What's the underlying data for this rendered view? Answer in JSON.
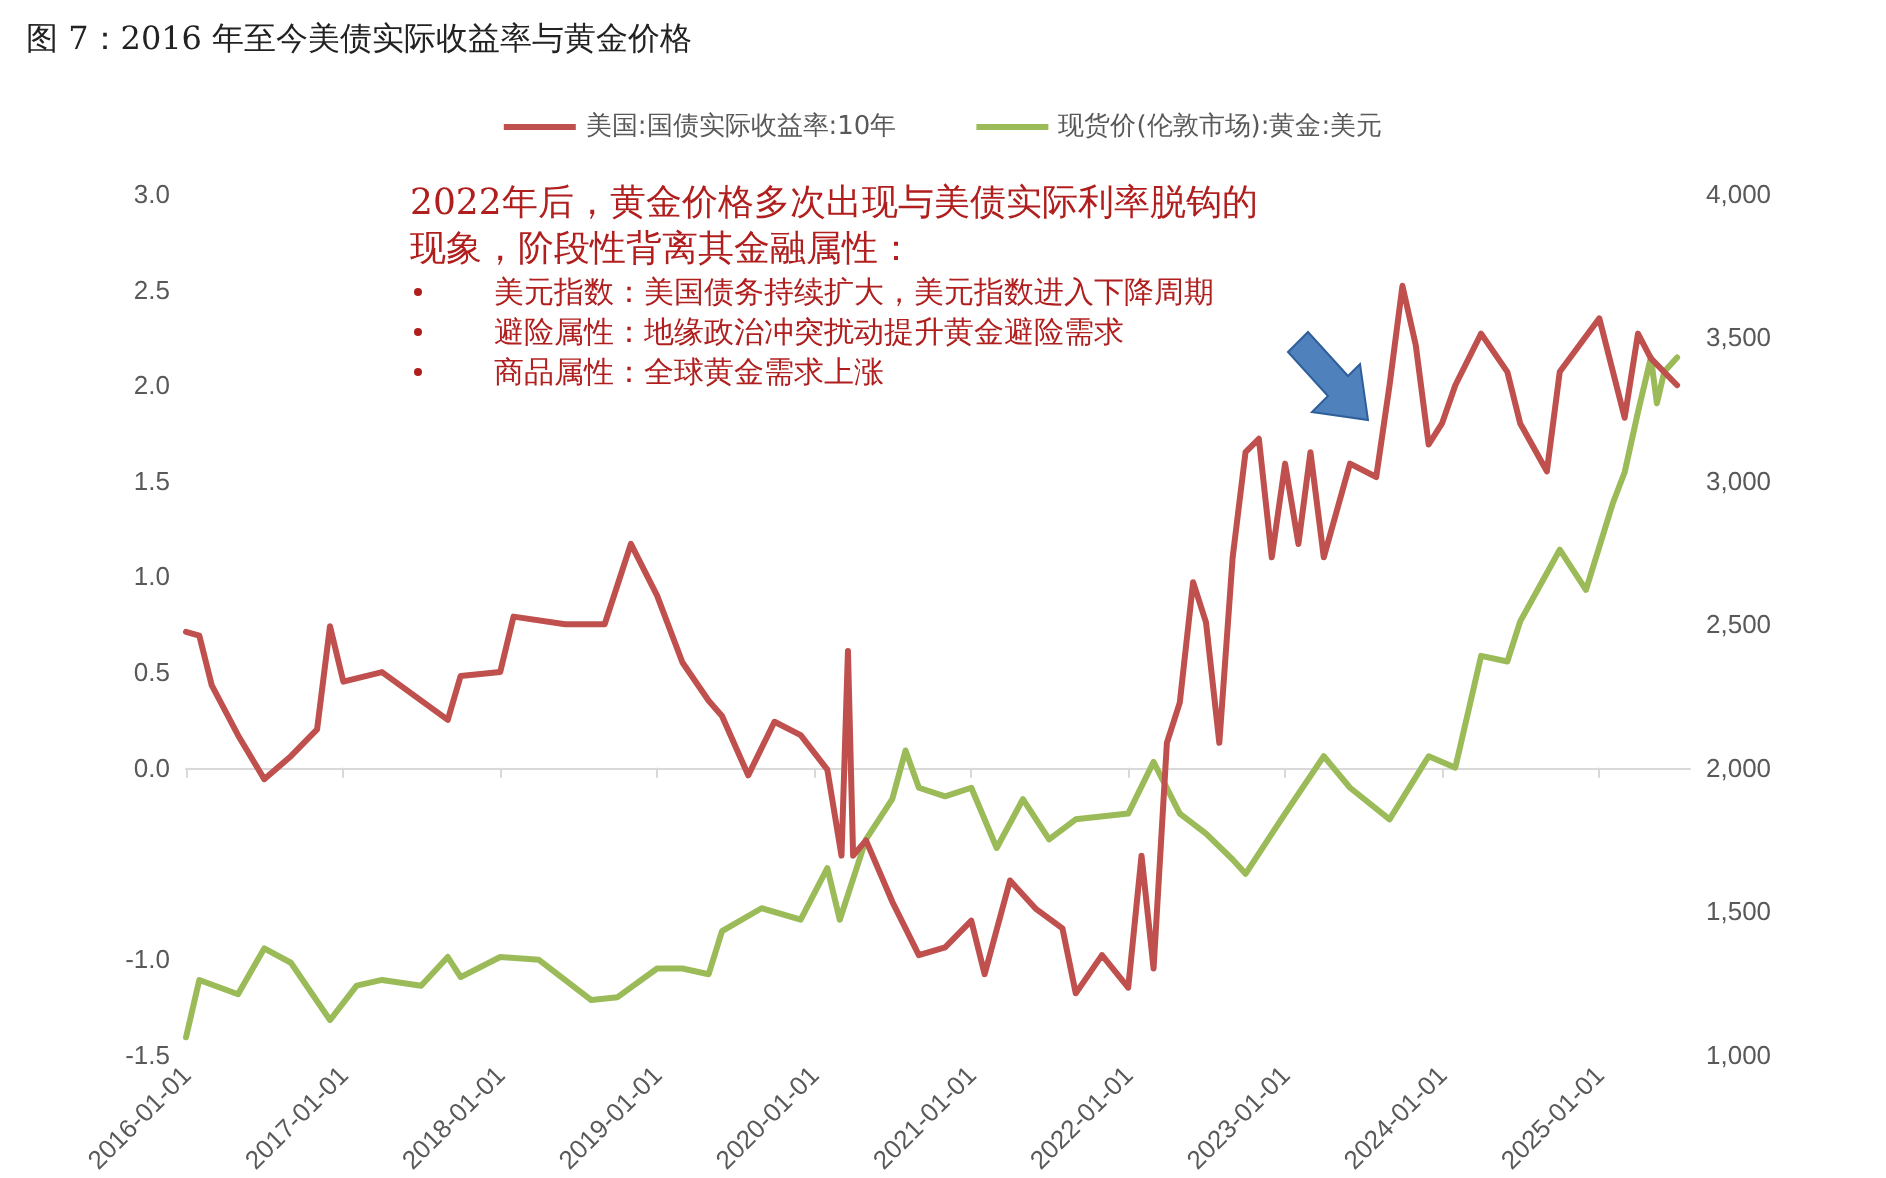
{
  "chart_data": {
    "type": "line",
    "title": "图 7：2016 年至今美债实际收益率与黄金价格",
    "annotations": [
      "2022年后，黄金价格多次出现与美债实际利率脱钩的现象，阶段性背离其金融属性：",
      "美元指数：美国债务持续扩大，美元指数进入下降周期",
      "避险属性：地缘政治冲突扰动提升黄金避险需求",
      "商品属性：全球黄金需求上涨"
    ],
    "xlim": [
      "2016-01-01",
      "2025-07-31"
    ],
    "xticks": [
      "2016-01-01",
      "2017-01-01",
      "2018-01-01",
      "2019-01-01",
      "2020-01-01",
      "2021-01-01",
      "2022-01-01",
      "2023-01-01",
      "2024-01-01",
      "2025-01-01"
    ],
    "ylim": [
      -1.5,
      3.0
    ],
    "yticks": [
      {
        "value": -1.5,
        "label": "-1.5"
      },
      {
        "value": -1,
        "label": "-1.0"
      },
      {
        "value": 0,
        "label": "0.0"
      },
      {
        "value": 0.5,
        "label": "0.5"
      },
      {
        "value": 1,
        "label": "1.0"
      },
      {
        "value": 1.5,
        "label": "1.5"
      },
      {
        "value": 2,
        "label": "2.0"
      },
      {
        "value": 2.5,
        "label": "2.5"
      },
      {
        "value": 3,
        "label": "3.0"
      }
    ],
    "y2lim": [
      1000,
      4000
    ],
    "y2ticks": [
      {
        "value": 1000,
        "label": "1,000"
      },
      {
        "value": 1500,
        "label": "1,500"
      },
      {
        "value": 2000,
        "label": "2,000"
      },
      {
        "value": 2500,
        "label": "2,500"
      },
      {
        "value": 3000,
        "label": "3,000"
      },
      {
        "value": 3500,
        "label": "3,500"
      },
      {
        "value": 4000,
        "label": "4,000"
      }
    ],
    "legend": "top",
    "marker": "none",
    "line_style": "solid",
    "series": [
      {
        "name": "美国:国债实际收益率:10年",
        "color": "#c0504d",
        "x": [
          "2016-01",
          "2016-02",
          "2016-03",
          "2016-05",
          "2016-07",
          "2016-09",
          "2016-11",
          "2016-12",
          "2017-01",
          "2017-04",
          "2017-09",
          "2017-10",
          "2018-01",
          "2018-02",
          "2018-06",
          "2018-09",
          "2018-11",
          "2019-01",
          "2019-03",
          "2019-05",
          "2019-06",
          "2019-08",
          "2019-10",
          "2019-12",
          "2020-02",
          "2020-03-05",
          "2020-03-20",
          "2020-04",
          "2020-05",
          "2020-07",
          "2020-09",
          "2020-11",
          "2021-01",
          "2021-02",
          "2021-04",
          "2021-06",
          "2021-08",
          "2021-09",
          "2021-11",
          "2022-01",
          "2022-02",
          "2022-03",
          "2022-04",
          "2022-05",
          "2022-06",
          "2022-07",
          "2022-08",
          "2022-09",
          "2022-10",
          "2022-11",
          "2022-12",
          "2023-01",
          "2023-02",
          "2023-03",
          "2023-04",
          "2023-06",
          "2023-08",
          "2023-09",
          "2023-10",
          "2023-11",
          "2023-12",
          "2024-01",
          "2024-02",
          "2024-04",
          "2024-06",
          "2024-07",
          "2024-09",
          "2024-10",
          "2025-01",
          "2025-03",
          "2025-04",
          "2025-05",
          "2025-07"
        ],
        "values": [
          0.71,
          0.69,
          0.43,
          0.17,
          -0.06,
          0.06,
          0.2,
          0.74,
          0.45,
          0.5,
          0.25,
          0.48,
          0.5,
          0.79,
          0.75,
          0.75,
          1.17,
          0.9,
          0.55,
          0.35,
          0.27,
          -0.04,
          0.24,
          0.17,
          -0.01,
          -0.46,
          0.61,
          -0.46,
          -0.38,
          -0.7,
          -0.98,
          -0.94,
          -0.8,
          -1.08,
          -0.59,
          -0.74,
          -0.84,
          -1.18,
          -0.98,
          -1.15,
          -0.46,
          -1.05,
          0.13,
          0.34,
          0.97,
          0.76,
          0.13,
          1.1,
          1.65,
          1.72,
          1.1,
          1.59,
          1.17,
          1.65,
          1.1,
          1.59,
          1.52,
          2.0,
          2.52,
          2.21,
          1.69,
          1.8,
          2.0,
          2.27,
          2.07,
          1.8,
          1.55,
          2.07,
          2.35,
          1.83,
          2.27,
          2.14,
          2.0
        ]
      },
      {
        "name": "现货价(伦敦市场):黄金:美元",
        "color": "#9bbb59",
        "axis": "y2",
        "x": [
          "2016-01",
          "2016-02",
          "2016-05",
          "2016-07",
          "2016-09",
          "2016-12",
          "2017-02",
          "2017-04",
          "2017-07",
          "2017-09",
          "2017-10",
          "2018-01",
          "2018-04",
          "2018-08",
          "2018-10",
          "2019-01",
          "2019-03",
          "2019-05",
          "2019-06",
          "2019-09",
          "2019-12",
          "2020-02",
          "2020-03",
          "2020-05",
          "2020-07",
          "2020-08",
          "2020-09",
          "2020-11",
          "2021-01",
          "2021-03",
          "2021-05",
          "2021-07",
          "2021-09",
          "2022-01",
          "2022-03",
          "2022-05",
          "2022-07",
          "2022-09",
          "2022-10",
          "2023-01",
          "2023-04",
          "2023-06",
          "2023-09",
          "2023-12",
          "2024-02",
          "2024-04",
          "2024-06",
          "2024-07",
          "2024-10",
          "2024-12",
          "2025-02",
          "2025-03",
          "2025-04",
          "2025-05-01",
          "2025-05-15",
          "2025-06",
          "2025-07"
        ],
        "values": [
          1060,
          1260,
          1210,
          1370,
          1320,
          1120,
          1240,
          1260,
          1240,
          1340,
          1270,
          1340,
          1330,
          1190,
          1200,
          1300,
          1300,
          1280,
          1430,
          1510,
          1470,
          1650,
          1470,
          1750,
          1890,
          2060,
          1930,
          1900,
          1930,
          1720,
          1890,
          1750,
          1820,
          1840,
          2020,
          1840,
          1770,
          1680,
          1630,
          1840,
          2040,
          1930,
          1820,
          2040,
          2000,
          2390,
          2370,
          2510,
          2760,
          2620,
          2920,
          3030,
          3240,
          3430,
          3270,
          3380,
          3430
        ]
      }
    ]
  }
}
